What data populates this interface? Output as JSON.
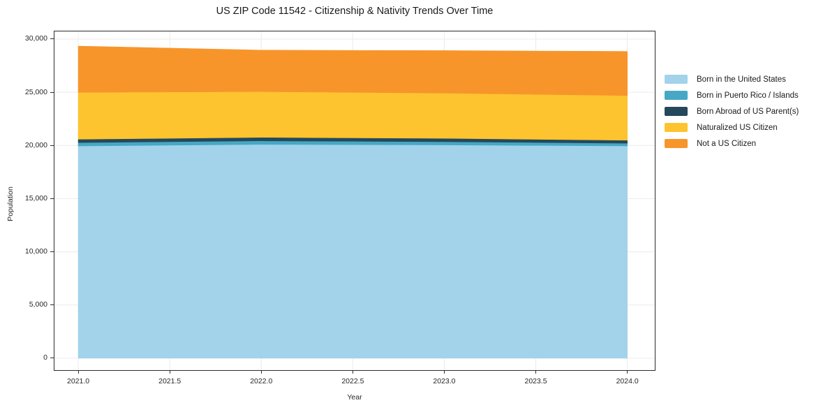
{
  "figure": {
    "background": "#ffffff"
  },
  "chart_data": {
    "type": "area",
    "stacked": true,
    "title": "US ZIP Code 11542 - Citizenship & Nativity Trends Over Time",
    "xlabel": "Year",
    "ylabel": "Population",
    "x": [
      2021,
      2022,
      2023,
      2024
    ],
    "series": [
      {
        "name": "Born in the United States",
        "color": "#a2d3ea",
        "values": [
          19950,
          20100,
          20050,
          19950
        ]
      },
      {
        "name": "Born in Puerto Rico / Islands",
        "color": "#46a8c5",
        "values": [
          320,
          330,
          300,
          260
        ]
      },
      {
        "name": "Born Abroad of US Parent(s)",
        "color": "#25485c",
        "values": [
          320,
          330,
          320,
          280
        ]
      },
      {
        "name": "Naturalized US Citizen",
        "color": "#fdc42f",
        "values": [
          4400,
          4300,
          4250,
          4200
        ]
      },
      {
        "name": "Not a US Citizen",
        "color": "#f7952b",
        "values": [
          4350,
          3900,
          4000,
          4150
        ]
      }
    ],
    "totals": [
      29340,
      28960,
      28920,
      28840
    ],
    "xlim": [
      2020.87,
      2024.15
    ],
    "ylim": [
      -1120,
      30720
    ],
    "xticks": {
      "values": [
        2021.0,
        2021.5,
        2022.0,
        2022.5,
        2023.0,
        2023.5,
        2024.0
      ],
      "labels": [
        "2021.0",
        "2021.5",
        "2022.0",
        "2022.5",
        "2023.0",
        "2023.5",
        "2024.0"
      ]
    },
    "yticks": {
      "values": [
        0,
        5000,
        10000,
        15000,
        20000,
        25000,
        30000
      ],
      "labels": [
        "0",
        "5,000",
        "10,000",
        "15,000",
        "20,000",
        "25,000",
        "30,000"
      ]
    },
    "grid": true,
    "grid_color": "#ececec",
    "legend_position": "right-outside"
  }
}
